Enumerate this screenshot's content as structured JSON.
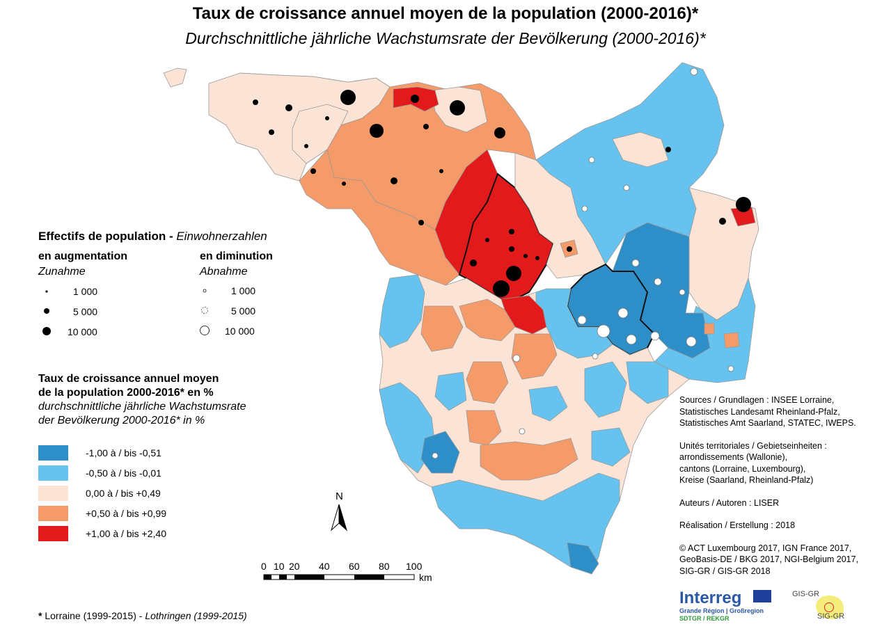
{
  "title_fr": "Taux de croissance annuel moyen de la population (2000-2016)*",
  "title_de": "Durchschnittliche jährliche Wachstumsrate der Bevölkerung (2000-2016)*",
  "population_legend": {
    "title_fr": "Effectifs de population - ",
    "title_de": "Einwohnerzahlen",
    "increase_fr": "en augmentation",
    "increase_de": "Zunahme",
    "decrease_fr": "en diminution",
    "decrease_de": "Abnahme",
    "sizes": [
      "1 000",
      "5 000",
      "10 000"
    ]
  },
  "rate_legend": {
    "title_fr_1": "Taux de croissance annuel moyen",
    "title_fr_2": "de la population 2000-2016* en %",
    "title_de_1": "durchschnittliche jährliche Wachstumsrate",
    "title_de_2": "der Bevölkerung 2000-2016* in %",
    "classes": [
      {
        "label": "-1,00 à / bis -0,51",
        "color": "#2e8fc8"
      },
      {
        "label": "-0,50 à / bis -0,01",
        "color": "#66c3ef"
      },
      {
        "label": " 0,00 à / bis +0,49",
        "color": "#fbe3d6"
      },
      {
        "label": "+0,50 à / bis +0,99",
        "color": "#f59a69"
      },
      {
        "label": "+1,00 à / bis +2,40",
        "color": "#e31a1c"
      }
    ]
  },
  "scale": {
    "ticks": [
      "0",
      "10",
      "20",
      "40",
      "60",
      "80",
      "100"
    ],
    "unit": "km"
  },
  "north": "N",
  "sources": [
    "Sources / Grundlagen : INSEE Lorraine,",
    "Statistisches Landesamt Rheinland-Pfalz,",
    "Statistisches Amt Saarland, STATEC, IWEPS."
  ],
  "units": [
    "Unités territoriales / Gebietseinheiten :",
    "arrondissements (Wallonie),",
    "cantons (Lorraine, Luxembourg),",
    "Kreise (Saarland, Rheinland-Pfalz)"
  ],
  "authors": "Auteurs / Autoren : LISER",
  "realisation": "Réalisation / Erstellung : 2018",
  "copyright": [
    "© ACT Luxembourg 2017, IGN France 2017,",
    "GeoBasis-DE / BKG 2017, NGI-Belgium 2017,",
    "SIG-GR / GIS-GR 2018"
  ],
  "footnote_fr": "Lorraine (1999-2015) - ",
  "footnote_de": "Lothringen (1999-2015)",
  "footnote_star": "* ",
  "logos": {
    "interreg_name": "Interreg",
    "interreg_sub": "Grande Région | Großregion",
    "interreg_sub2": "SDTGR / REKGR",
    "gis_top": "GIS-GR",
    "gis_bottom": "SIG-GR"
  }
}
